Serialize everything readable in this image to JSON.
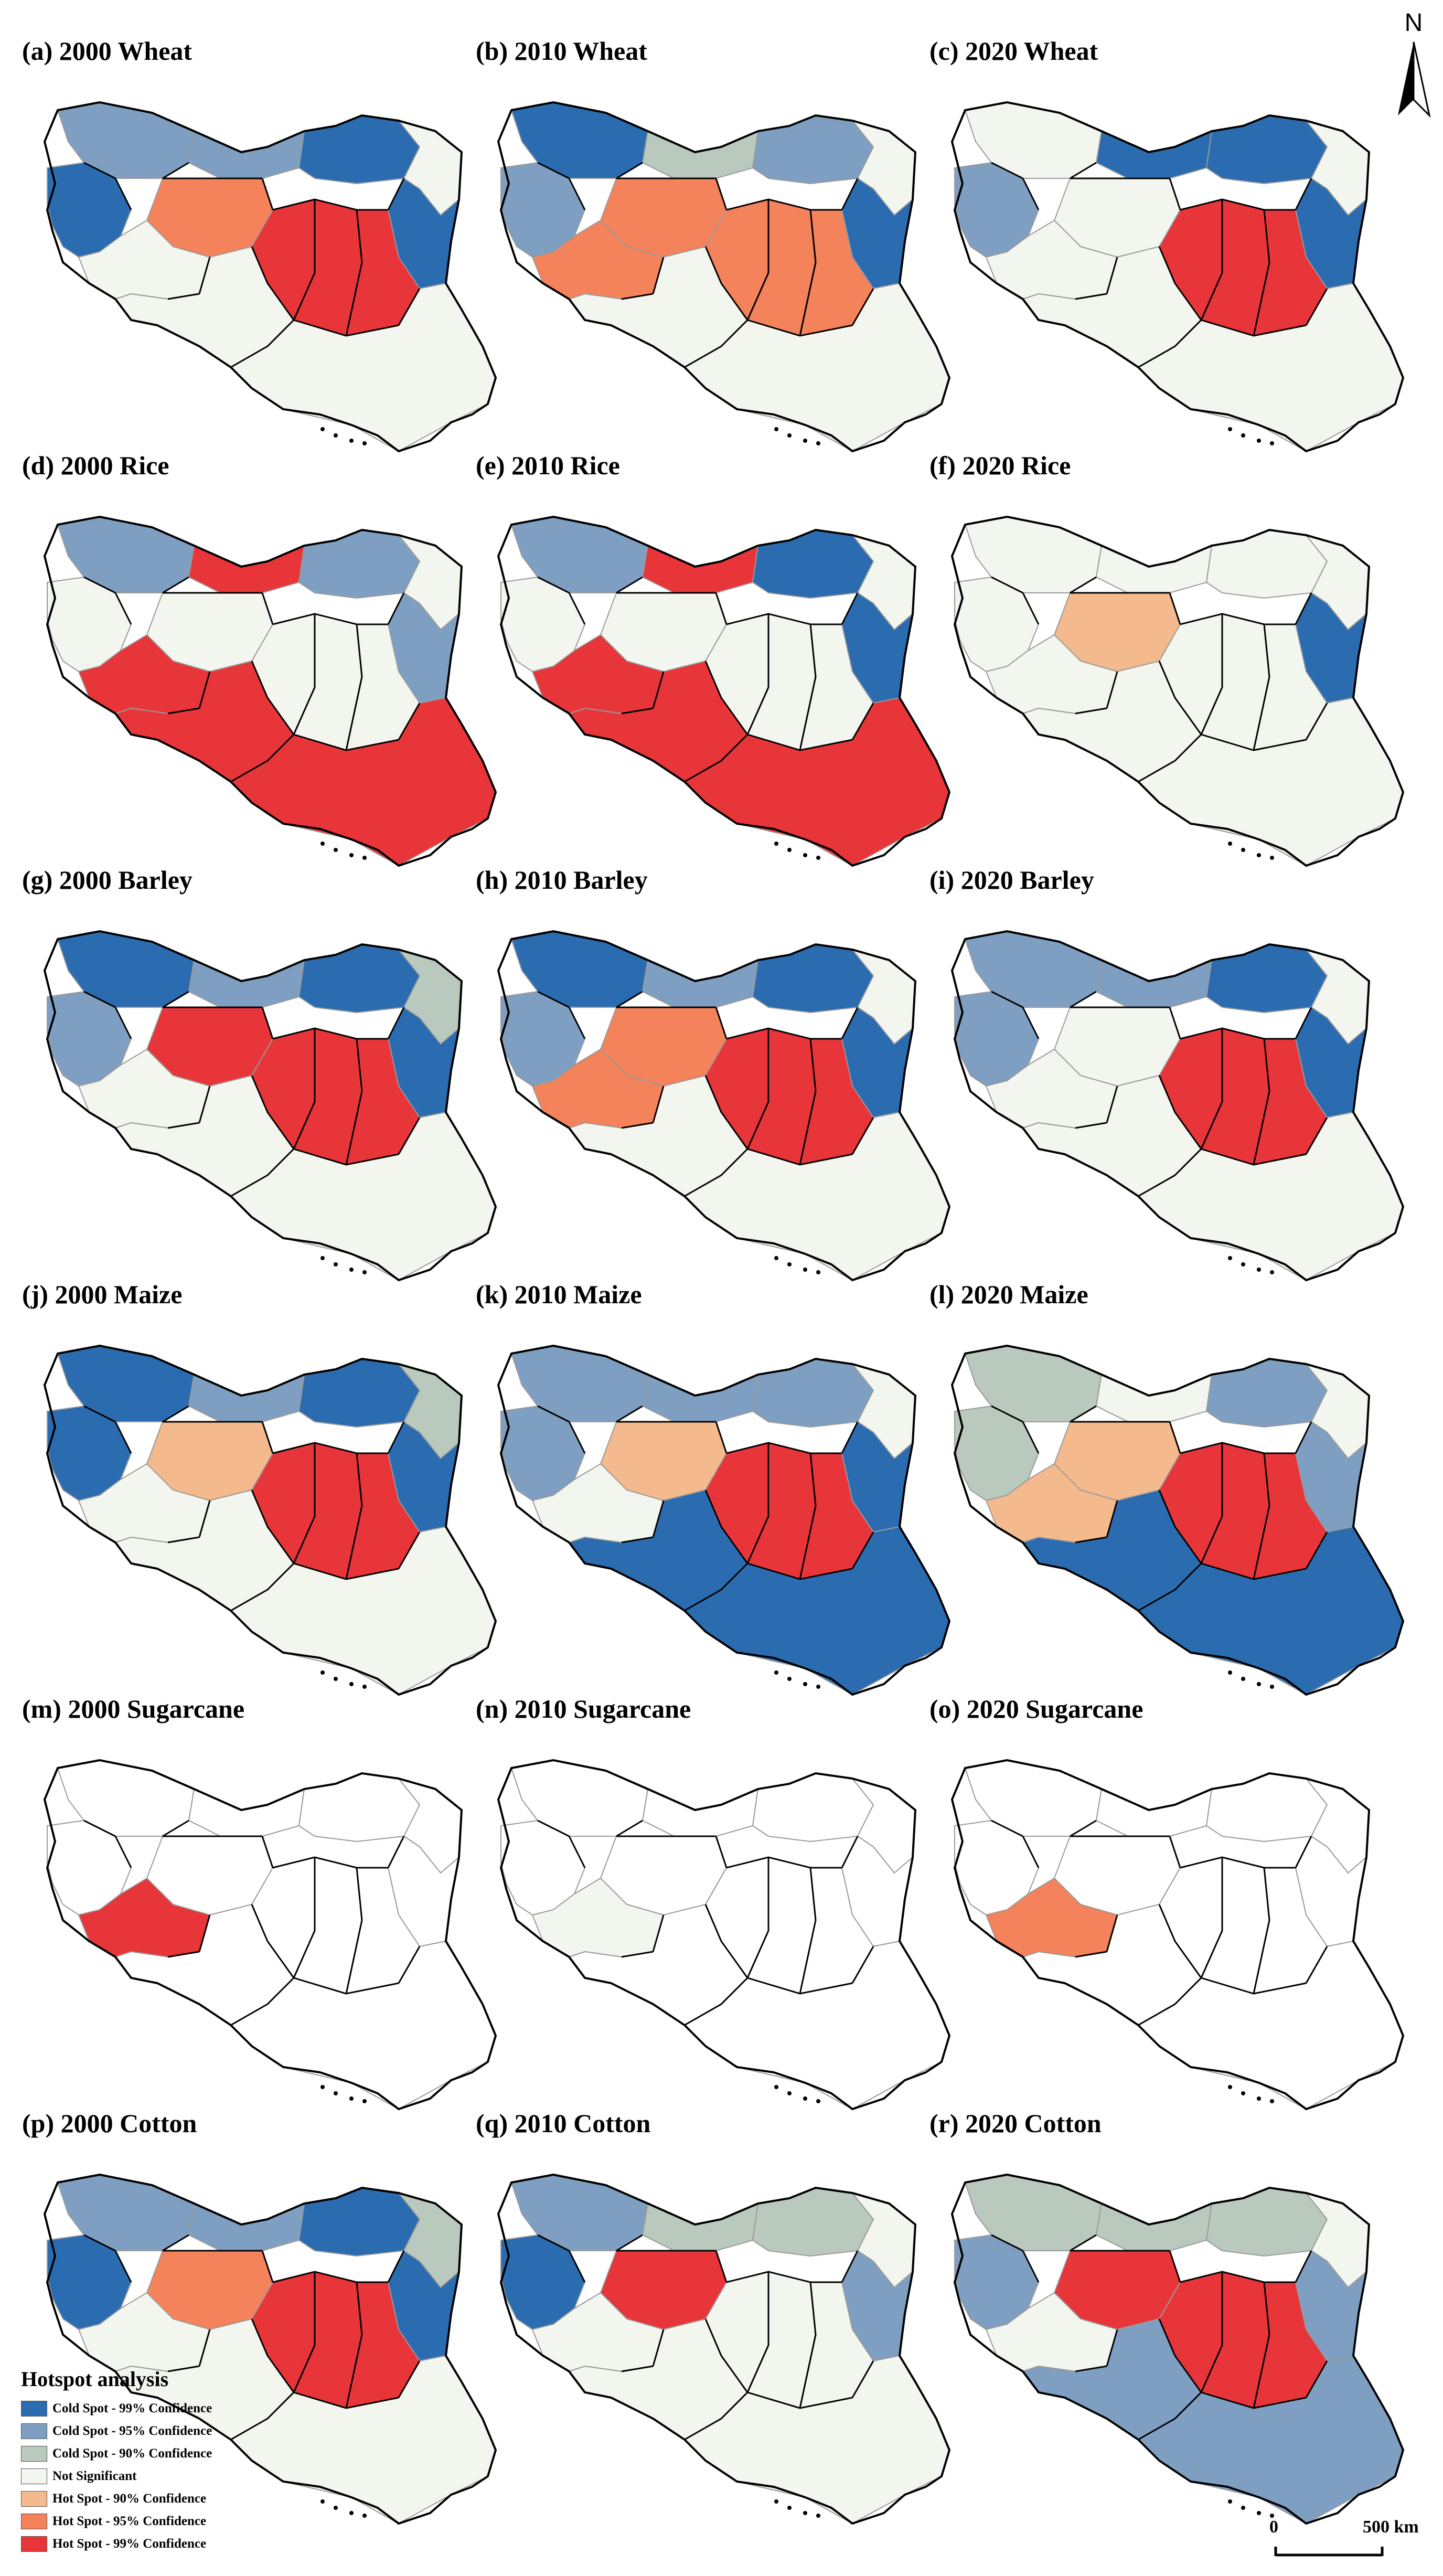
{
  "panels": [
    {
      "label": "(a) 2000 Wheat",
      "key": "wheat2000",
      "z": {
        "NW": "c95",
        "W": "c99",
        "N1": "c95",
        "N2": "c99",
        "NE": "ns",
        "E": "c99",
        "C": "h95",
        "SE": "h99",
        "SW": "ns",
        "S": "ns"
      }
    },
    {
      "label": "(b) 2010 Wheat",
      "key": "wheat2010",
      "z": {
        "NW": "c99",
        "W": "c95",
        "N1": "c90",
        "N2": "c95",
        "NE": "ns",
        "E": "c99",
        "C": "h95",
        "SE": "h95",
        "SW": "h95",
        "S": "ns"
      }
    },
    {
      "label": "(c) 2020 Wheat",
      "key": "wheat2020",
      "z": {
        "NW": "ns",
        "W": "c95",
        "N1": "c99",
        "N2": "c99",
        "NE": "ns",
        "E": "c99",
        "C": "ns",
        "SE": "h99",
        "SW": "ns",
        "S": "ns"
      }
    },
    {
      "label": "(d) 2000 Rice",
      "key": "rice2000",
      "z": {
        "NW": "c95",
        "W": "ns",
        "N1": "h99",
        "N2": "c95",
        "NE": "ns",
        "E": "c95",
        "C": "ns",
        "SE": "ns",
        "SW": "h99",
        "S": "h99"
      }
    },
    {
      "label": "(e) 2010 Rice",
      "key": "rice2010",
      "z": {
        "NW": "c95",
        "W": "ns",
        "N1": "h99",
        "N2": "c99",
        "NE": "ns",
        "E": "c99",
        "C": "ns",
        "SE": "ns",
        "SW": "h99",
        "S": "h99"
      }
    },
    {
      "label": "(f) 2020 Rice",
      "key": "rice2020",
      "z": {
        "NW": "ns",
        "W": "ns",
        "N1": "ns",
        "N2": "ns",
        "NE": "ns",
        "E": "c99",
        "C": "h90",
        "SE": "ns",
        "SW": "ns",
        "S": "ns"
      }
    },
    {
      "label": "(g) 2000 Barley",
      "key": "barley2000",
      "z": {
        "NW": "c99",
        "W": "c95",
        "N1": "c95",
        "N2": "c99",
        "NE": "c90",
        "E": "c99",
        "C": "h99",
        "SE": "h99",
        "SW": "ns",
        "S": "ns"
      }
    },
    {
      "label": "(h) 2010 Barley",
      "key": "barley2010",
      "z": {
        "NW": "c99",
        "W": "c95",
        "N1": "c95",
        "N2": "c99",
        "NE": "ns",
        "E": "c99",
        "C": "h95",
        "SE": "h99",
        "SW": "h95",
        "S": "ns"
      }
    },
    {
      "label": "(i) 2020 Barley",
      "key": "barley2020",
      "z": {
        "NW": "c95",
        "W": "c95",
        "N1": "c95",
        "N2": "c99",
        "NE": "ns",
        "E": "c99",
        "C": "ns",
        "SE": "h99",
        "SW": "ns",
        "S": "ns"
      }
    },
    {
      "label": "(j) 2000 Maize",
      "key": "maize2000",
      "z": {
        "NW": "c99",
        "W": "c99",
        "N1": "c95",
        "N2": "c99",
        "NE": "c90",
        "E": "c99",
        "C": "h90",
        "SE": "h99",
        "SW": "ns",
        "S": "ns"
      }
    },
    {
      "label": "(k) 2010 Maize",
      "key": "maize2010",
      "z": {
        "NW": "c95",
        "W": "c95",
        "N1": "c95",
        "N2": "c95",
        "NE": "ns",
        "E": "c99",
        "C": "h90",
        "SE": "h99",
        "SW": "ns",
        "S": "c99"
      }
    },
    {
      "label": "(l) 2020 Maize",
      "key": "maize2020",
      "z": {
        "NW": "c90",
        "W": "c90",
        "N1": "ns",
        "N2": "c95",
        "NE": "ns",
        "E": "c95",
        "C": "h90",
        "SE": "h99",
        "SW": "h90",
        "S": "c99"
      }
    },
    {
      "label": "(m) 2000 Sugarcane",
      "key": "sugar2000",
      "z": {
        "NW": "none",
        "W": "none",
        "N1": "none",
        "N2": "none",
        "NE": "none",
        "E": "none",
        "C": "none",
        "SE": "none",
        "SW": "h99",
        "S": "none"
      }
    },
    {
      "label": "(n) 2010 Sugarcane",
      "key": "sugar2010",
      "z": {
        "NW": "none",
        "W": "none",
        "N1": "none",
        "N2": "none",
        "NE": "none",
        "E": "none",
        "C": "none",
        "SE": "none",
        "SW": "ns",
        "S": "none"
      }
    },
    {
      "label": "(o) 2020 Sugarcane",
      "key": "sugar2020",
      "z": {
        "NW": "none",
        "W": "none",
        "N1": "none",
        "N2": "none",
        "NE": "none",
        "E": "none",
        "C": "none",
        "SE": "none",
        "SW": "h95",
        "S": "none"
      }
    },
    {
      "label": "(p) 2000 Cotton",
      "key": "cotton2000",
      "z": {
        "NW": "c95",
        "W": "c99",
        "N1": "c95",
        "N2": "c99",
        "NE": "c90",
        "E": "c99",
        "C": "h95",
        "SE": "h99",
        "SW": "ns",
        "S": "ns"
      }
    },
    {
      "label": "(q) 2010 Cotton",
      "key": "cotton2010",
      "z": {
        "NW": "c95",
        "W": "c99",
        "N1": "c90",
        "N2": "c90",
        "NE": "ns",
        "E": "c95",
        "C": "h99",
        "SE": "ns",
        "SW": "ns",
        "S": "ns"
      }
    },
    {
      "label": "(r) 2020 Cotton",
      "key": "cotton2020",
      "z": {
        "NW": "c90",
        "W": "c95",
        "N1": "c90",
        "N2": "c90",
        "NE": "ns",
        "E": "c95",
        "C": "h99",
        "SE": "h99",
        "SW": "ns",
        "S": "c95"
      }
    }
  ],
  "colors": {
    "c99": "#2b6cb0",
    "c95": "#7f9fc2",
    "c90": "#b9c9bd",
    "ns": "#f3f5ef",
    "h90": "#f4b98c",
    "h95": "#f4825a",
    "h99": "#e8353a",
    "none": "#ffffff"
  },
  "legend": {
    "title": "Hotspot analysis",
    "items": [
      {
        "label": "Cold Spot - 99% Confidence",
        "key": "c99"
      },
      {
        "label": "Cold Spot - 95% Confidence",
        "key": "c95"
      },
      {
        "label": "Cold Spot - 90% Confidence",
        "key": "c90"
      },
      {
        "label": "Not Significant",
        "key": "ns"
      },
      {
        "label": "Hot Spot - 90% Confidence",
        "key": "h90"
      },
      {
        "label": "Hot Spot - 95% Confidence",
        "key": "h95"
      },
      {
        "label": "Hot Spot - 99% Confidence",
        "key": "h99"
      }
    ]
  },
  "north_arrow": {
    "letter": "N"
  },
  "scale_bar": {
    "start": "0",
    "end": "500 km"
  }
}
